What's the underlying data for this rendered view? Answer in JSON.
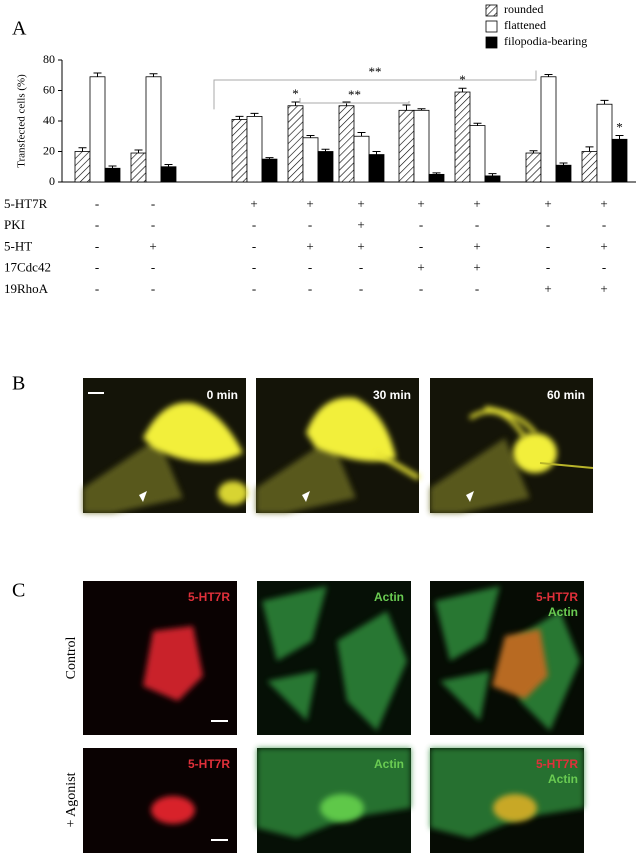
{
  "chart_data": {
    "type": "bar",
    "panel": "A",
    "ylabel": "Transfected cells (%)",
    "categories": [
      null,
      null,
      null,
      null,
      null,
      null,
      null,
      null,
      null
    ],
    "series": [
      {
        "name": "rounded",
        "color": "#ffffff",
        "pattern": "hatch",
        "values": [
          20,
          19,
          41,
          50,
          50,
          47,
          59,
          19,
          20
        ],
        "errors": [
          2.5,
          2,
          2,
          2.5,
          2.5,
          3.5,
          2.5,
          1.5,
          3
        ]
      },
      {
        "name": "flattened",
        "color": "#ffffff",
        "values": [
          69,
          69,
          43,
          29,
          30,
          47,
          37,
          69,
          51
        ],
        "errors": [
          2.5,
          2,
          2,
          1.5,
          2.5,
          1,
          1.5,
          1.5,
          2.5
        ]
      },
      {
        "name": "filopodia-bearing",
        "color": "#000000",
        "values": [
          9,
          10,
          15,
          20,
          18,
          5,
          4,
          11,
          28
        ],
        "errors": [
          1.5,
          1.5,
          1,
          1.5,
          2,
          1,
          1.5,
          1.5,
          2.5
        ]
      }
    ],
    "ylim": [
      0,
      80
    ],
    "yticks": [
      0,
      20,
      40,
      60,
      80
    ],
    "conditions": [
      {
        "name": "5-HT7R",
        "values": [
          "-",
          "-",
          "+",
          "+",
          "+",
          "+",
          "+",
          "+",
          "+"
        ]
      },
      {
        "name": "PKI",
        "values": [
          "-",
          "-",
          "-",
          "-",
          "+",
          "-",
          "-",
          "-",
          "-"
        ]
      },
      {
        "name": "5-HT",
        "values": [
          "-",
          "+",
          "-",
          "+",
          "+",
          "-",
          "+",
          "-",
          "+"
        ]
      },
      {
        "name": "17Cdc42",
        "values": [
          "-",
          "-",
          "-",
          "-",
          "-",
          "+",
          "+",
          "-",
          "-"
        ]
      },
      {
        "name": "19RhoA",
        "values": [
          "-",
          "-",
          "-",
          "-",
          "-",
          "-",
          "-",
          "+",
          "+"
        ]
      }
    ],
    "brackets": [
      {
        "label": "**",
        "from": 2,
        "to": 7
      },
      {
        "label": "**",
        "from": 3,
        "to": 5
      }
    ],
    "stars": [
      {
        "label": "*",
        "group": 3,
        "series": 0
      },
      {
        "label": "*",
        "group": 6,
        "series": 0
      },
      {
        "label": "*",
        "group": 8,
        "series": 2
      }
    ]
  },
  "panels": {
    "a": "A",
    "b": "B",
    "c": "C"
  },
  "panel_b": {
    "frames": [
      "0 min",
      "30 min",
      "60 min"
    ]
  },
  "panel_c": {
    "rows": [
      "Control",
      "+ Agonist"
    ],
    "channels": [
      "5-HT7R",
      "Actin"
    ]
  }
}
